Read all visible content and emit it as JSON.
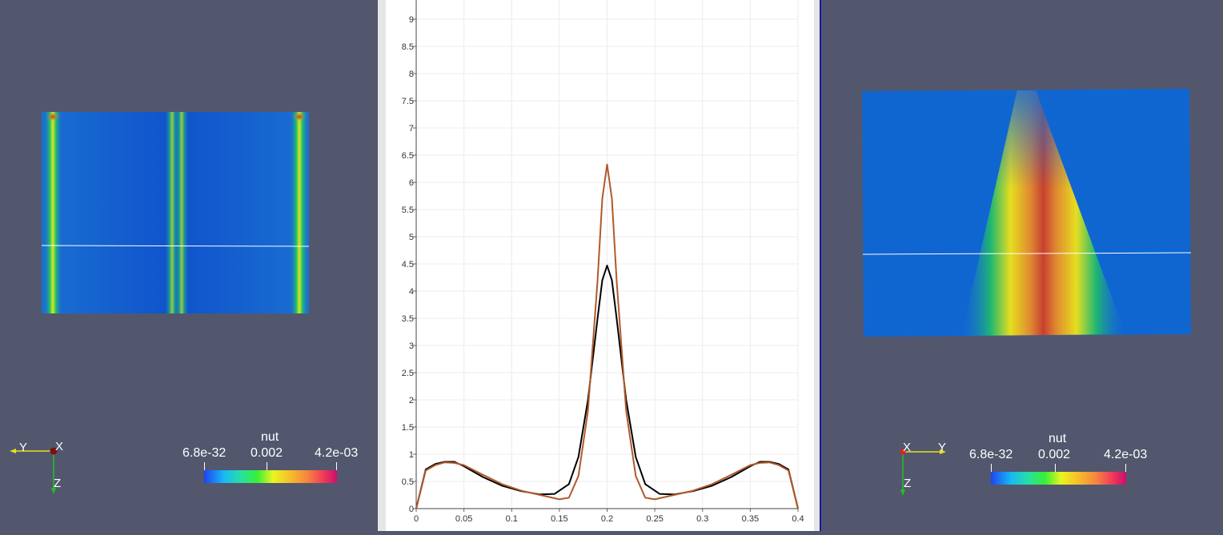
{
  "left_view": {
    "orientation": {
      "y_label": "Y",
      "x_label": "X",
      "z_label": "Z"
    },
    "scalebar": {
      "title": "nut",
      "min_label": "6.8e-32",
      "mid_label": "0.002",
      "max_label": "4.2e-03"
    }
  },
  "right_view": {
    "orientation": {
      "x_label": "X",
      "y_label": "Y",
      "z_label": "Z"
    },
    "scalebar": {
      "title": "nut",
      "min_label": "6.8e-32",
      "mid_label": "0.002",
      "max_label": "4.2e-03"
    }
  },
  "colors": {
    "background": "#52576e",
    "series_black": "#000000",
    "series_brown": "#b05a2a",
    "divider": "#1a1aa8"
  },
  "chart_data": {
    "type": "line",
    "title": "",
    "xlabel": "",
    "ylabel": "",
    "xlim": [
      0,
      0.4
    ],
    "ylim": [
      0,
      9.5
    ],
    "x_ticks": [
      "0",
      "0.05",
      "0.1",
      "0.15",
      "0.2",
      "0.25",
      "0.3",
      "0.35",
      "0.4"
    ],
    "y_ticks": [
      "0",
      "0.5",
      "1",
      "1.5",
      "2",
      "2.5",
      "3",
      "3.5",
      "4",
      "4.5",
      "5",
      "5.5",
      "6",
      "6.5",
      "7",
      "7.5",
      "8",
      "8.5",
      "9"
    ],
    "grid": true,
    "series": [
      {
        "color": "#000000",
        "x": [
          0,
          0.01,
          0.02,
          0.03,
          0.04,
          0.05,
          0.07,
          0.09,
          0.11,
          0.13,
          0.145,
          0.16,
          0.17,
          0.18,
          0.19,
          0.195,
          0.2,
          0.205,
          0.21,
          0.22,
          0.23,
          0.24,
          0.255,
          0.27,
          0.29,
          0.31,
          0.33,
          0.35,
          0.36,
          0.37,
          0.38,
          0.39,
          0.4
        ],
        "y": [
          0,
          0.72,
          0.82,
          0.86,
          0.86,
          0.78,
          0.58,
          0.42,
          0.32,
          0.26,
          0.27,
          0.45,
          0.95,
          2.0,
          3.5,
          4.2,
          4.47,
          4.2,
          3.5,
          2.0,
          0.95,
          0.45,
          0.27,
          0.26,
          0.32,
          0.42,
          0.58,
          0.78,
          0.86,
          0.86,
          0.82,
          0.72,
          0
        ]
      },
      {
        "color": "#b05a2a",
        "x": [
          0,
          0.01,
          0.02,
          0.03,
          0.04,
          0.05,
          0.07,
          0.09,
          0.11,
          0.13,
          0.15,
          0.16,
          0.17,
          0.18,
          0.19,
          0.195,
          0.2,
          0.205,
          0.21,
          0.22,
          0.23,
          0.24,
          0.25,
          0.27,
          0.29,
          0.31,
          0.33,
          0.35,
          0.36,
          0.37,
          0.38,
          0.39,
          0.4
        ],
        "y": [
          0,
          0.7,
          0.8,
          0.85,
          0.84,
          0.8,
          0.62,
          0.45,
          0.33,
          0.25,
          0.17,
          0.2,
          0.6,
          1.8,
          4.2,
          5.7,
          6.33,
          5.7,
          4.2,
          1.8,
          0.6,
          0.2,
          0.17,
          0.25,
          0.33,
          0.45,
          0.62,
          0.8,
          0.84,
          0.85,
          0.8,
          0.7,
          0
        ]
      }
    ]
  }
}
